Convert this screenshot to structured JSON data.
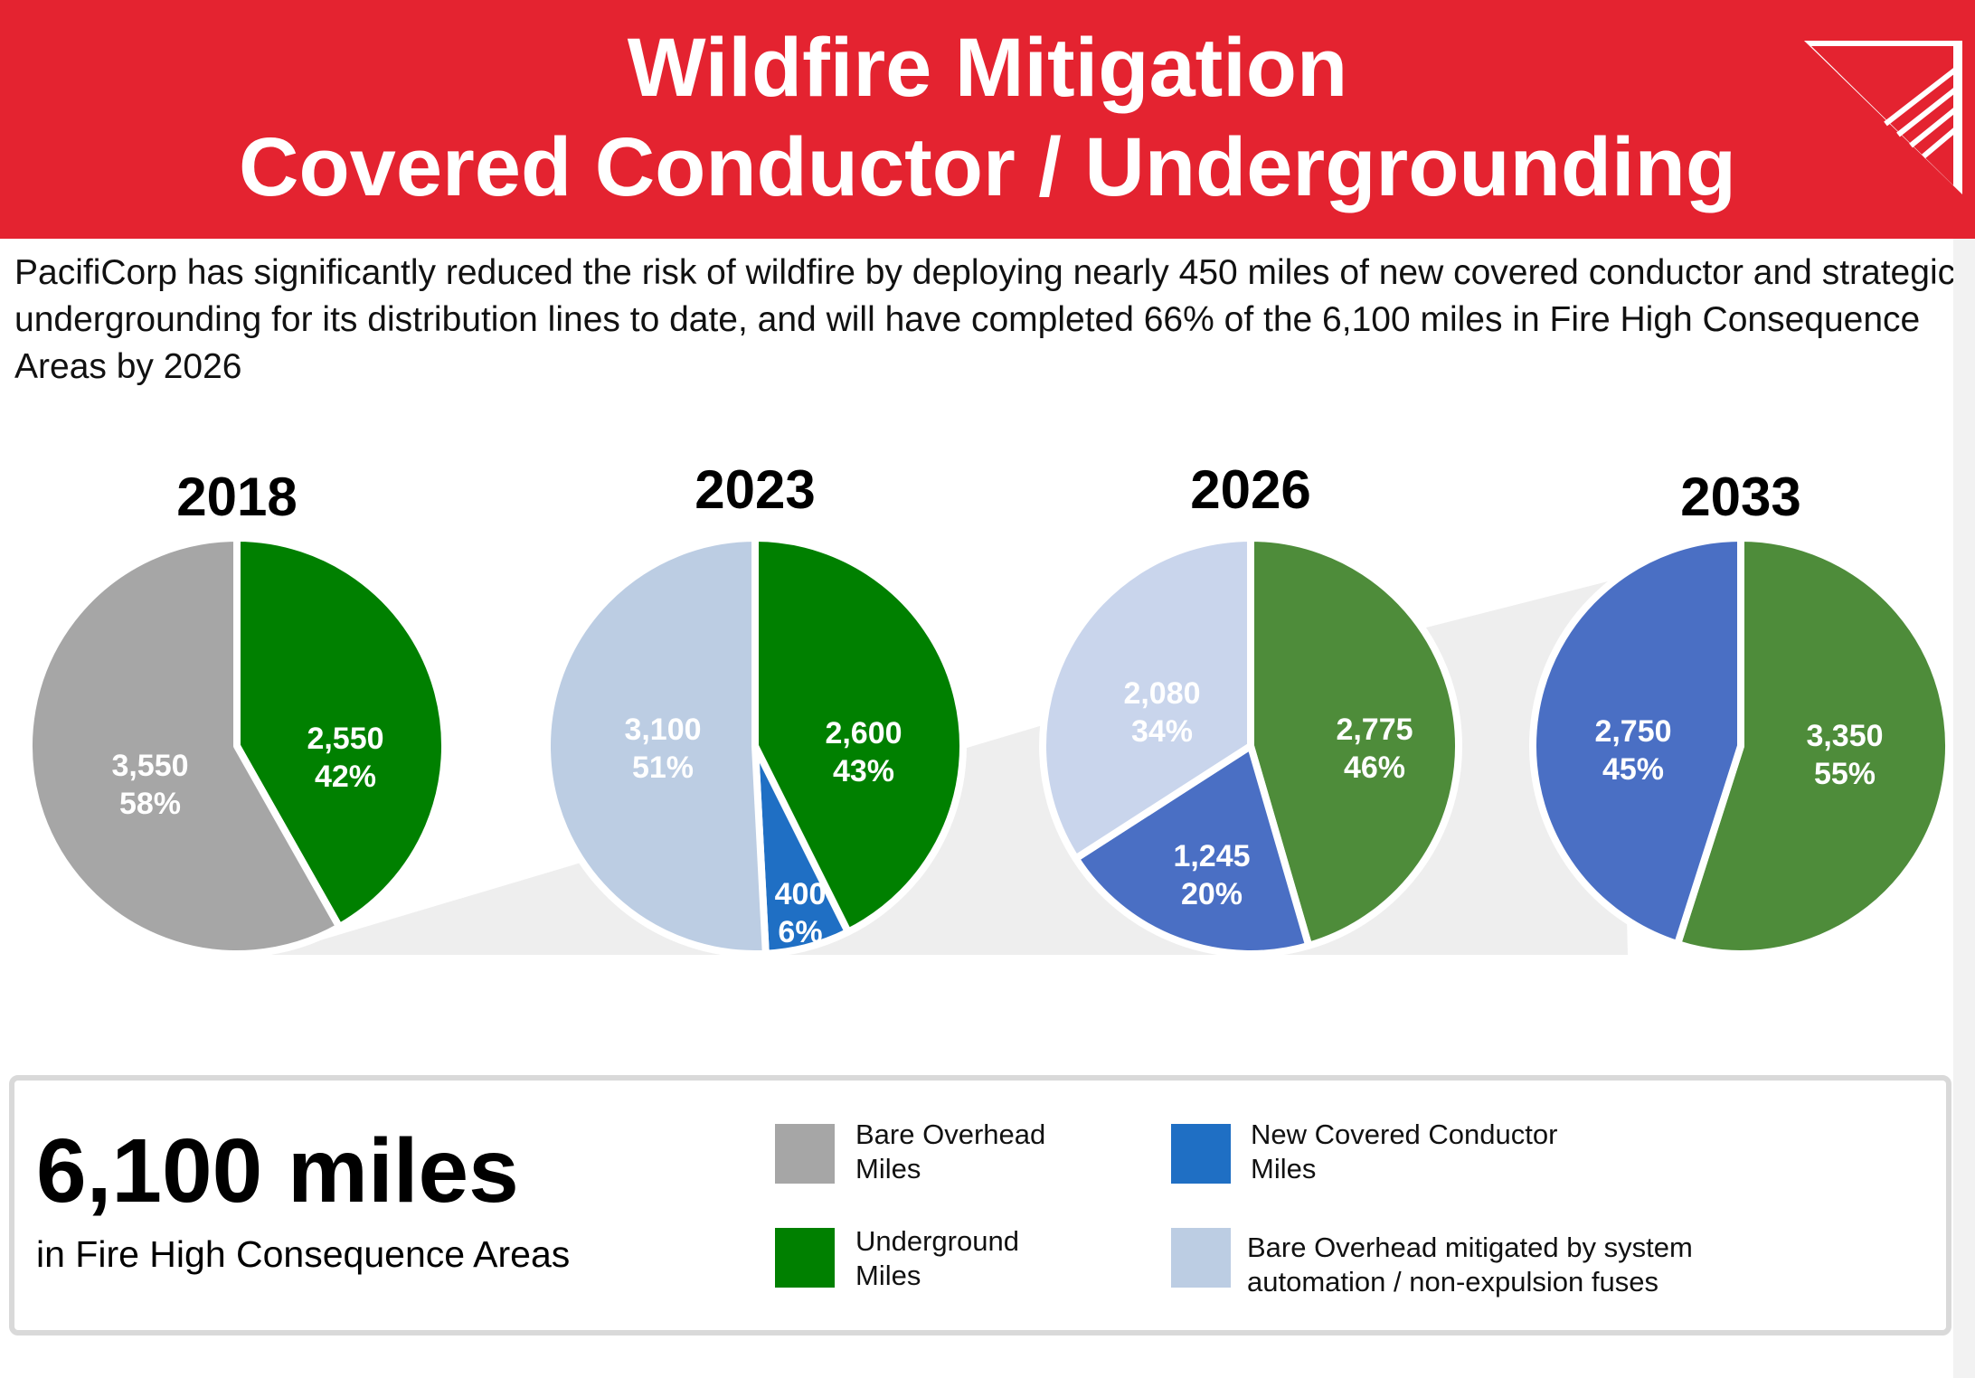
{
  "header": {
    "title_line1": "Wildfire Mitigation",
    "title_line2": "Covered Conductor / Undergrounding"
  },
  "intro_text": "PacifiCorp has significantly reduced the risk of wildfire by deploying nearly 450 miles of new covered conductor and strategic undergrounding for its distribution lines to date, and will have completed 66% of the 6,100 miles in Fire High Consequence Areas by 2026",
  "colors": {
    "header_red": "#e42330",
    "bare_overhead": "#a6a6a6",
    "underground": "#008000",
    "underground_later": "#4e8c3a",
    "new_covered": "#1f6fc4",
    "new_covered_later": "#4a6fc4",
    "mitigated": "#bccde3",
    "mitigated_later": "#c9d5ec"
  },
  "chart_data": [
    {
      "type": "pie",
      "title": "2018",
      "slices": [
        {
          "label": "Underground Miles",
          "value": 2550,
          "display_value": "2,550",
          "percent": "42%",
          "color": "#008000"
        },
        {
          "label": "Bare Overhead Miles",
          "value": 3550,
          "display_value": "3,550",
          "percent": "58%",
          "color": "#a6a6a6"
        }
      ]
    },
    {
      "type": "pie",
      "title": "2023",
      "slices": [
        {
          "label": "Underground Miles",
          "value": 2600,
          "display_value": "2,600",
          "percent": "43%",
          "color": "#008000"
        },
        {
          "label": "New Covered Conductor Miles",
          "value": 400,
          "display_value": "400",
          "percent": "6%",
          "color": "#1f6fc4"
        },
        {
          "label": "Bare Overhead mitigated by system automation / non-expulsion fuses",
          "value": 3100,
          "display_value": "3,100",
          "percent": "51%",
          "color": "#bccde3"
        }
      ]
    },
    {
      "type": "pie",
      "title": "2026",
      "slices": [
        {
          "label": "Underground Miles",
          "value": 2775,
          "display_value": "2,775",
          "percent": "46%",
          "color": "#4e8c3a"
        },
        {
          "label": "New Covered Conductor Miles",
          "value": 1245,
          "display_value": "1,245",
          "percent": "20%",
          "color": "#4a6fc4"
        },
        {
          "label": "Bare Overhead mitigated by system automation / non-expulsion fuses",
          "value": 2080,
          "display_value": "2,080",
          "percent": "34%",
          "color": "#c9d5ec"
        }
      ]
    },
    {
      "type": "pie",
      "title": "2033",
      "slices": [
        {
          "label": "Underground Miles",
          "value": 3350,
          "display_value": "3,350",
          "percent": "55%",
          "color": "#4e8c3a"
        },
        {
          "label": "New Covered Conductor Miles",
          "value": 2750,
          "display_value": "2,750",
          "percent": "45%",
          "color": "#4a6fc4"
        }
      ]
    }
  ],
  "summary": {
    "big_number": "6,100 miles",
    "subtitle": "in Fire High Consequence Areas"
  },
  "legend": [
    {
      "label": "Bare Overhead Miles",
      "color": "#a6a6a6"
    },
    {
      "label": "Underground Miles",
      "color": "#008000"
    },
    {
      "label": "New Covered Conductor Miles",
      "color": "#1f6fc4"
    },
    {
      "label": "Bare Overhead mitigated by system automation / non-expulsion fuses",
      "color": "#bccde3"
    }
  ]
}
